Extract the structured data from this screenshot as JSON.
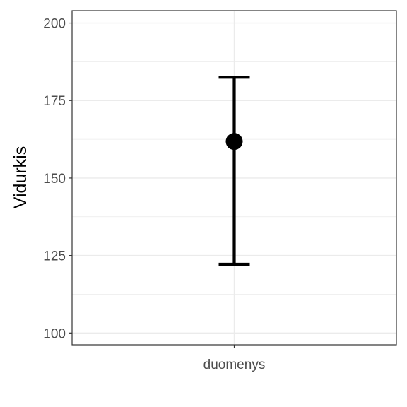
{
  "chart_data": {
    "type": "errorbar",
    "title": "",
    "xlabel": "",
    "ylabel": "Vidurkis",
    "categories": [
      "duomenys"
    ],
    "points": [
      {
        "category": "duomenys",
        "mean": 161.8,
        "lower": 122.2,
        "upper": 182.5
      }
    ],
    "ylim": [
      96.2,
      204.0
    ],
    "yticks": [
      100,
      125,
      150,
      175,
      200
    ],
    "grid": true,
    "legend": "none",
    "colors": {
      "point": "#000000",
      "errorbar": "#000000",
      "grid": "#ebebeb",
      "panel_border": "#333333",
      "tick_label": "#4d4d4d"
    }
  }
}
